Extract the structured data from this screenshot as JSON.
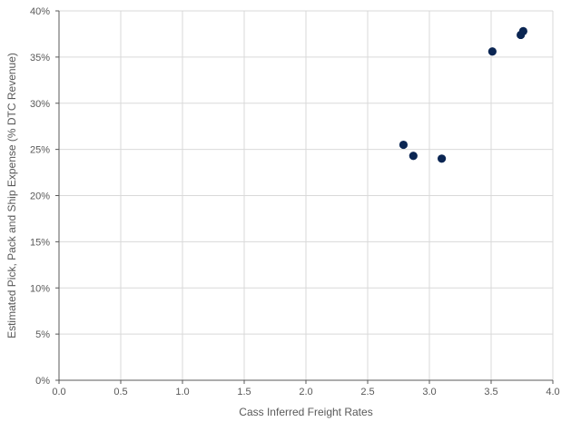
{
  "chart_data": {
    "type": "scatter",
    "title": "",
    "xlabel": "Cass Inferred Freight Rates",
    "ylabel": "Estimated Pick, Pack and Ship Expense (% DTC Revenue)",
    "xlim": [
      0,
      4
    ],
    "ylim": [
      0,
      0.4
    ],
    "x_ticks": [
      "0.0",
      "0.5",
      "1.0",
      "1.5",
      "2.0",
      "2.5",
      "3.0",
      "3.5",
      "4.0"
    ],
    "y_ticks": [
      "0%",
      "5%",
      "10%",
      "15%",
      "20%",
      "25%",
      "30%",
      "35%",
      "40%"
    ],
    "grid": true,
    "legend": "none",
    "marker_color": "#0b2653",
    "gridline_color": "#d9d9d9",
    "axis_color": "#595959",
    "series": [
      {
        "points": [
          {
            "x": 2.79,
            "y": 0.255
          },
          {
            "x": 2.87,
            "y": 0.243
          },
          {
            "x": 3.1,
            "y": 0.24
          },
          {
            "x": 3.51,
            "y": 0.356
          },
          {
            "x": 3.74,
            "y": 0.374
          },
          {
            "x": 3.76,
            "y": 0.378
          }
        ]
      }
    ]
  }
}
